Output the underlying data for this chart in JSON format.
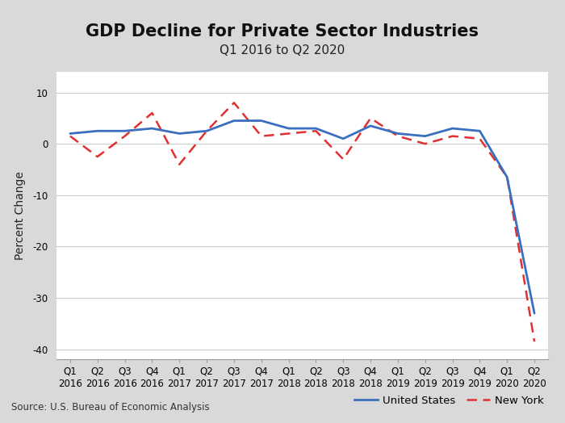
{
  "title": "GDP Decline for Private Sector Industries",
  "subtitle": "Q1 2016 to Q2 2020",
  "ylabel": "Percent Change",
  "source": "Source: U.S. Bureau of Economic Analysis",
  "ylim": [
    -42,
    14
  ],
  "yticks": [
    10,
    0,
    -10,
    -20,
    -30,
    -40
  ],
  "background_color": "#d9d9d9",
  "plot_background_color": "#ffffff",
  "x_labels": [
    "Q1\n2016",
    "Q2\n2016",
    "Q3\n2016",
    "Q4\n2016",
    "Q1\n2017",
    "Q2\n2017",
    "Q3\n2017",
    "Q4\n2017",
    "Q1\n2018",
    "Q2\n2018",
    "Q3\n2018",
    "Q4\n2018",
    "Q1\n2019",
    "Q2\n2019",
    "Q3\n2019",
    "Q4\n2019",
    "Q1\n2020",
    "Q2\n2020"
  ],
  "us_values": [
    2.0,
    2.5,
    2.5,
    3.0,
    2.0,
    2.5,
    4.5,
    4.5,
    3.0,
    3.0,
    1.0,
    3.5,
    2.0,
    1.5,
    3.0,
    2.5,
    -6.5,
    -33.0
  ],
  "ny_values": [
    1.5,
    -2.5,
    1.5,
    6.0,
    -4.0,
    2.5,
    8.0,
    1.5,
    2.0,
    2.5,
    -3.0,
    5.0,
    1.5,
    0.0,
    1.5,
    1.0,
    -6.5,
    -38.5
  ],
  "us_color": "#3a6fbf",
  "ny_color": "#e03030",
  "us_linewidth": 2.0,
  "ny_linewidth": 1.8,
  "us_label": "United States",
  "ny_label": "New York",
  "title_fontsize": 15,
  "subtitle_fontsize": 11,
  "axis_label_fontsize": 10,
  "tick_fontsize": 8.5,
  "source_fontsize": 8.5,
  "legend_fontsize": 9.5
}
